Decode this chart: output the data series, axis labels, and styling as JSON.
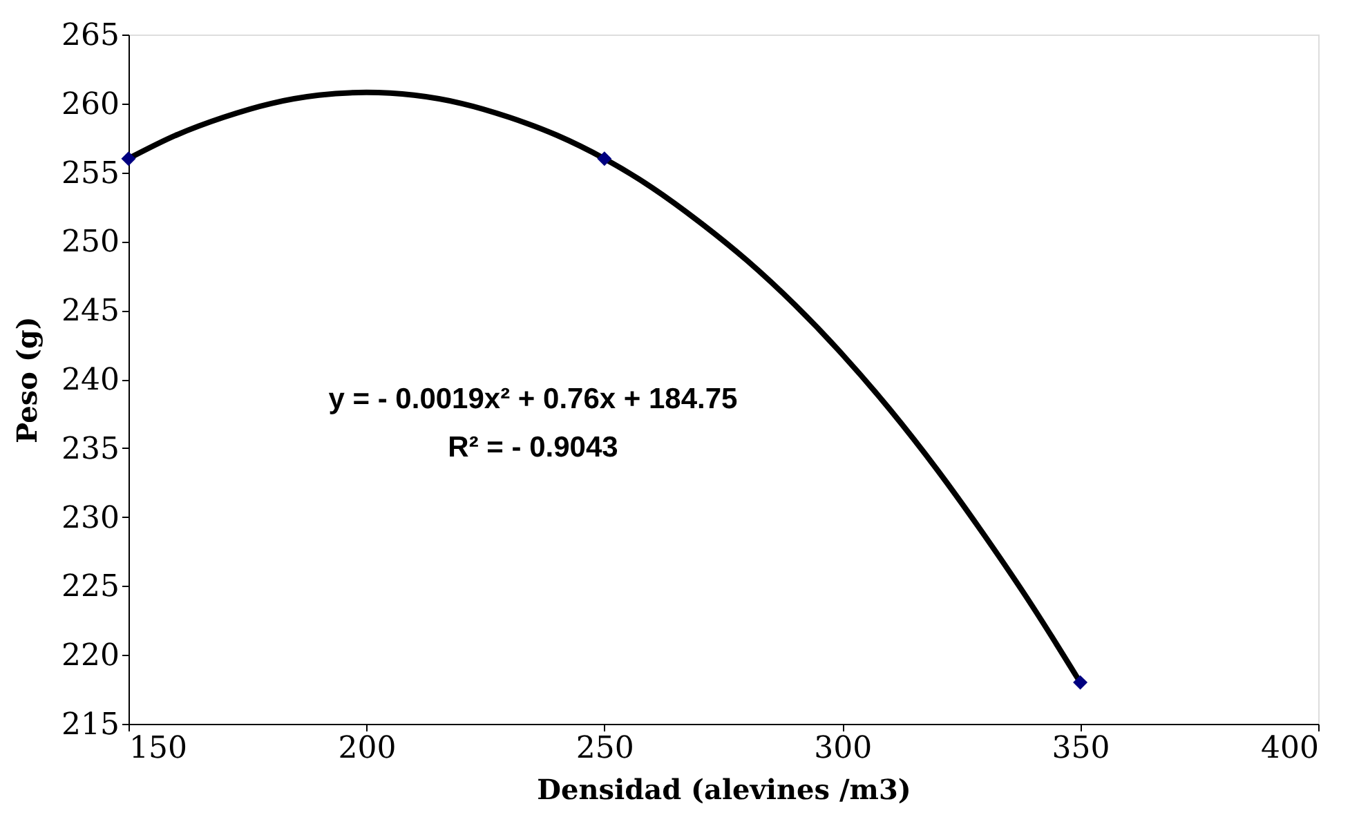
{
  "chart_data": {
    "type": "scatter",
    "xlabel": "Densidad (alevines /m3)",
    "ylabel": "Peso (g)",
    "xlim": [
      150,
      400
    ],
    "xticks": [
      150,
      200,
      250,
      300,
      350,
      400
    ],
    "ylim": [
      215,
      265
    ],
    "yticks": [
      215,
      220,
      225,
      230,
      235,
      240,
      245,
      250,
      255,
      260,
      265
    ],
    "grid": false,
    "legend": false,
    "series": [
      {
        "color": "#000080",
        "marker": "diamond",
        "x": [
          150,
          250,
          350
        ],
        "values": [
          256,
          256,
          218
        ]
      },
      {
        "type": "line",
        "color": "#000000",
        "marker": "none",
        "line_style": "solid",
        "x": [
          150,
          160,
          170,
          180,
          190,
          200,
          210,
          220,
          230,
          240,
          250,
          260,
          270,
          280,
          290,
          300,
          310,
          320,
          330,
          340,
          350
        ],
        "values": [
          256,
          257.7,
          259.0,
          260.0,
          260.6,
          260.8,
          260.6,
          260.0,
          259.0,
          257.7,
          256,
          253.9,
          251.4,
          248.6,
          245.4,
          241.8,
          237.8,
          233.4,
          228.6,
          223.5,
          218
        ]
      }
    ],
    "annotations": [
      "y = - 0.0019x² + 0.76x + 184.75",
      "R² = - 0.9043"
    ]
  }
}
